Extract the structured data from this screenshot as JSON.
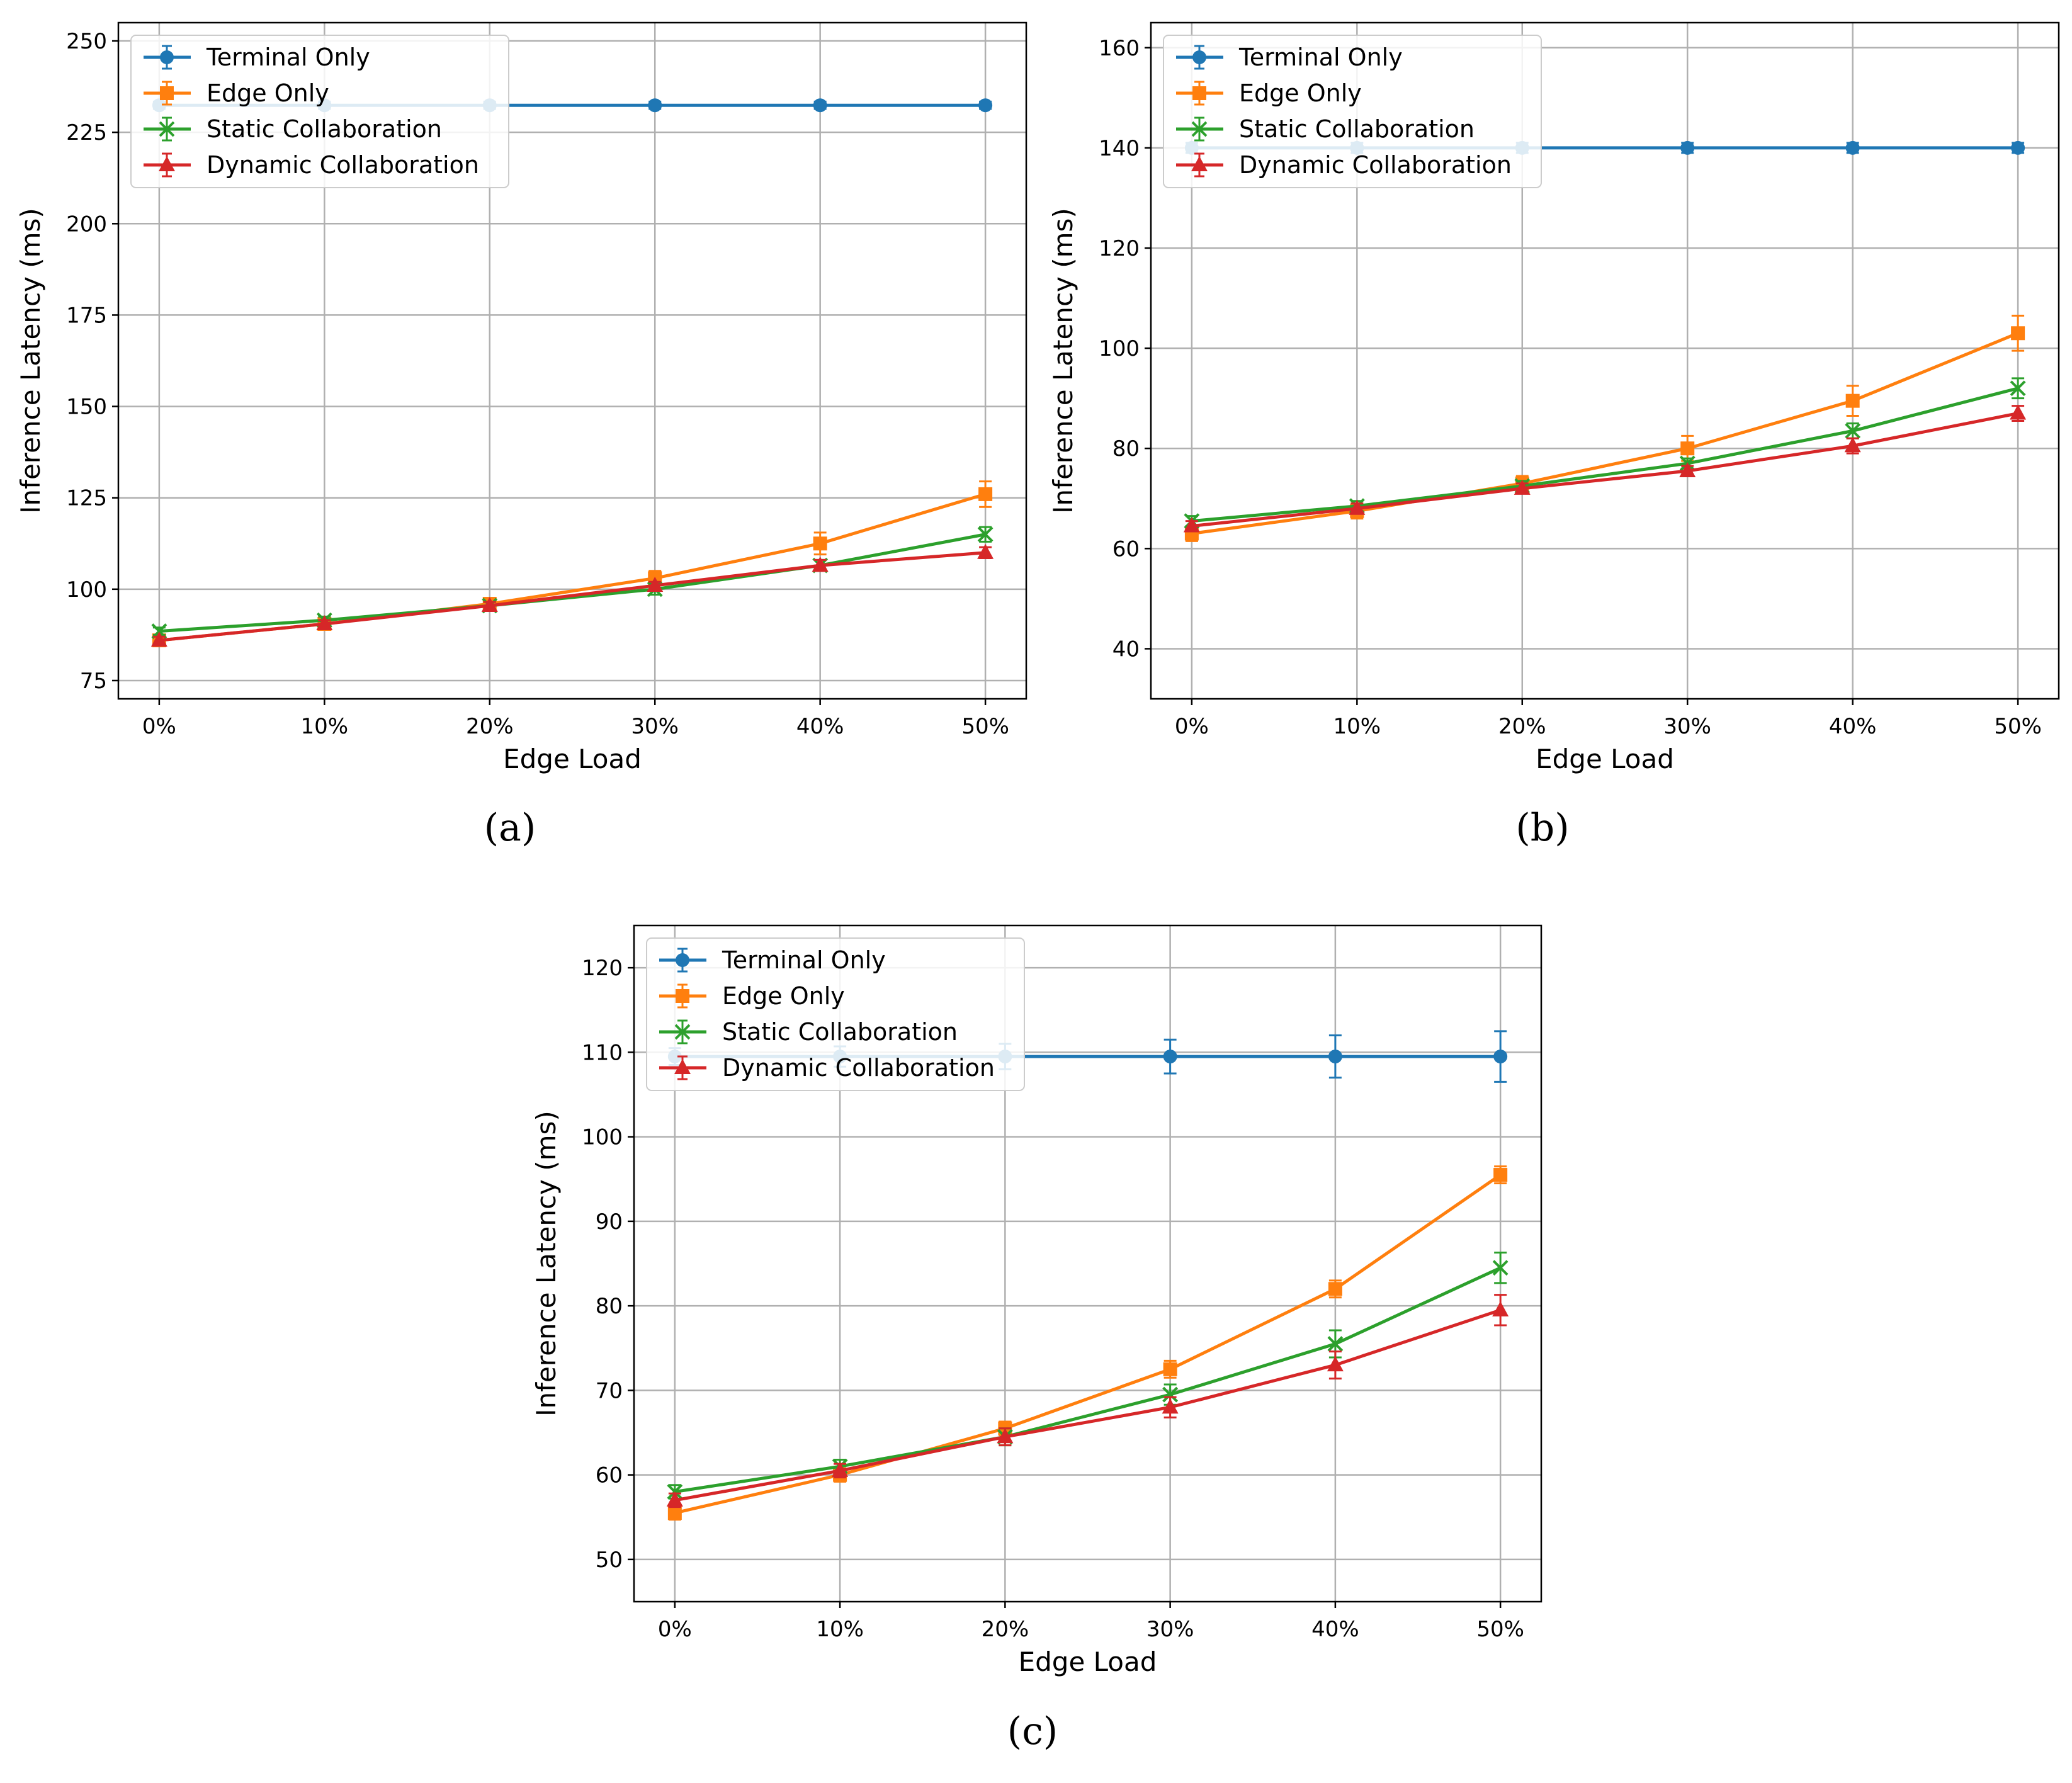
{
  "chart_data": [
    {
      "panel": "(a)",
      "type": "line",
      "xlabel": "Edge Load",
      "ylabel": "Inference Latency (ms)",
      "categories": [
        "0%",
        "10%",
        "20%",
        "30%",
        "40%",
        "50%"
      ],
      "ylim": [
        70,
        255
      ],
      "yticks": [
        75,
        100,
        125,
        150,
        175,
        200,
        225,
        250
      ],
      "grid": true,
      "legend": "top-left",
      "series": [
        {
          "name": "Terminal Only",
          "color": "#1f77b4",
          "marker": "circle",
          "values": [
            232.4,
            232.4,
            232.4,
            232.4,
            232.4,
            232.4
          ],
          "errors": [
            1.0,
            1.0,
            1.0,
            1.0,
            1.0,
            1.0
          ]
        },
        {
          "name": "Edge Only",
          "color": "#ff7f0e",
          "marker": "square",
          "values": [
            86.0,
            90.5,
            96.0,
            103.0,
            112.5,
            126.0
          ],
          "errors": [
            1.5,
            1.5,
            1.5,
            2.0,
            3.0,
            3.5
          ]
        },
        {
          "name": "Static Collaboration",
          "color": "#2ca02c",
          "marker": "x",
          "values": [
            88.5,
            91.5,
            95.5,
            100.0,
            106.5,
            115.0
          ],
          "errors": [
            1.0,
            1.0,
            1.0,
            1.5,
            1.5,
            2.0
          ]
        },
        {
          "name": "Dynamic Collaboration",
          "color": "#d62728",
          "marker": "triangle",
          "values": [
            86.0,
            90.5,
            95.5,
            101.0,
            106.5,
            110.0
          ],
          "errors": [
            1.0,
            1.0,
            1.0,
            1.0,
            1.5,
            1.5
          ]
        }
      ]
    },
    {
      "panel": "(b)",
      "type": "line",
      "xlabel": "Edge Load",
      "ylabel": "Inference Latency (ms)",
      "categories": [
        "0%",
        "10%",
        "20%",
        "30%",
        "40%",
        "50%"
      ],
      "ylim": [
        30,
        165
      ],
      "yticks": [
        40,
        60,
        80,
        100,
        120,
        140,
        160
      ],
      "grid": true,
      "legend": "top-left",
      "series": [
        {
          "name": "Terminal Only",
          "color": "#1f77b4",
          "marker": "circle",
          "values": [
            140.0,
            140.0,
            140.0,
            140.0,
            140.0,
            140.0
          ],
          "errors": [
            1.0,
            1.0,
            1.0,
            1.0,
            1.0,
            1.0
          ]
        },
        {
          "name": "Edge Only",
          "color": "#ff7f0e",
          "marker": "square",
          "values": [
            63.0,
            67.5,
            73.0,
            80.0,
            89.5,
            103.0
          ],
          "errors": [
            1.5,
            1.5,
            1.5,
            2.5,
            3.0,
            3.5
          ]
        },
        {
          "name": "Static Collaboration",
          "color": "#2ca02c",
          "marker": "x",
          "values": [
            65.5,
            68.5,
            72.5,
            77.0,
            83.5,
            92.0
          ],
          "errors": [
            1.0,
            1.0,
            1.0,
            1.0,
            1.5,
            2.0
          ]
        },
        {
          "name": "Dynamic Collaboration",
          "color": "#d62728",
          "marker": "triangle",
          "values": [
            64.5,
            68.0,
            72.0,
            75.5,
            80.5,
            87.0
          ],
          "errors": [
            1.0,
            1.0,
            1.0,
            1.0,
            1.5,
            1.5
          ]
        }
      ]
    },
    {
      "panel": "(c)",
      "type": "line",
      "xlabel": "Edge Load",
      "ylabel": "Inference Latency (ms)",
      "categories": [
        "0%",
        "10%",
        "20%",
        "30%",
        "40%",
        "50%"
      ],
      "ylim": [
        45,
        125
      ],
      "yticks": [
        50,
        60,
        70,
        80,
        90,
        100,
        110,
        120
      ],
      "grid": true,
      "legend": "top-left",
      "series": [
        {
          "name": "Terminal Only",
          "color": "#1f77b4",
          "marker": "circle",
          "values": [
            109.5,
            109.5,
            109.5,
            109.5,
            109.5,
            109.5
          ],
          "errors": [
            1.0,
            1.2,
            1.5,
            2.0,
            2.5,
            3.0
          ]
        },
        {
          "name": "Edge Only",
          "color": "#ff7f0e",
          "marker": "square",
          "values": [
            55.5,
            60.0,
            65.5,
            72.5,
            82.0,
            95.5
          ],
          "errors": [
            0.8,
            0.8,
            0.8,
            1.0,
            1.0,
            1.0
          ]
        },
        {
          "name": "Static Collaboration",
          "color": "#2ca02c",
          "marker": "x",
          "values": [
            58.0,
            61.0,
            64.5,
            69.5,
            75.5,
            84.5
          ],
          "errors": [
            0.8,
            0.8,
            1.0,
            1.2,
            1.6,
            1.8
          ]
        },
        {
          "name": "Dynamic Collaboration",
          "color": "#d62728",
          "marker": "triangle",
          "values": [
            57.0,
            60.5,
            64.5,
            68.0,
            73.0,
            79.5
          ],
          "errors": [
            0.8,
            0.8,
            1.0,
            1.2,
            1.6,
            1.8
          ]
        }
      ]
    }
  ]
}
